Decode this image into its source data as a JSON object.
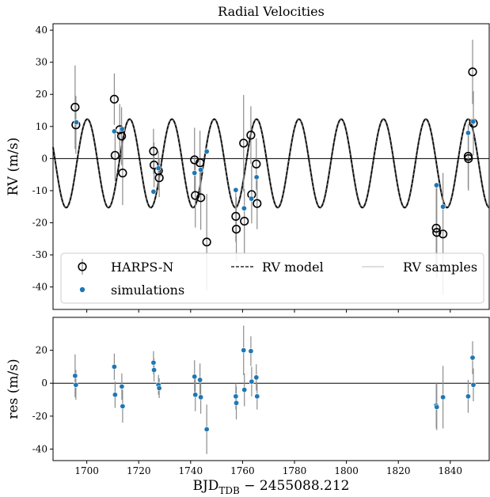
{
  "chart_data": [
    {
      "type": "scatter",
      "title": "Radial Velocities",
      "xlabel": "",
      "ylabel": "RV (m/s)",
      "xlim": [
        1687,
        1855
      ],
      "ylim": [
        -47,
        42
      ],
      "yticks": [
        -40,
        -30,
        -20,
        -10,
        0,
        10,
        20,
        30,
        40
      ],
      "grid": false,
      "legend": {
        "placement": "bottom",
        "entries": [
          "HARPS-N",
          "RV model",
          "RV samples",
          "simulations"
        ]
      },
      "series": [
        {
          "name": "HARPS-N",
          "marker": "open-circle",
          "color": "#000000",
          "points": [
            {
              "x": 1695.5,
              "y": 16.0,
              "err": 13
            },
            {
              "x": 1695.8,
              "y": 10.5,
              "err": 9
            },
            {
              "x": 1710.6,
              "y": 18.5,
              "err": 8
            },
            {
              "x": 1710.9,
              "y": 1.0,
              "err": 8
            },
            {
              "x": 1712.7,
              "y": 9.0,
              "err": 8
            },
            {
              "x": 1713.4,
              "y": 7.0,
              "err": 9
            },
            {
              "x": 1713.8,
              "y": -4.5,
              "err": 10
            },
            {
              "x": 1725.7,
              "y": 2.3,
              "err": 7
            },
            {
              "x": 1725.9,
              "y": -2.0,
              "err": 7
            },
            {
              "x": 1727.6,
              "y": -3.8,
              "err": 6
            },
            {
              "x": 1727.9,
              "y": -6.0,
              "err": 6
            },
            {
              "x": 1741.5,
              "y": -0.4,
              "err": 10
            },
            {
              "x": 1741.8,
              "y": -11.5,
              "err": 10
            },
            {
              "x": 1743.6,
              "y": -1.3,
              "err": 10
            },
            {
              "x": 1743.9,
              "y": -12.2,
              "err": 10
            },
            {
              "x": 1746.2,
              "y": -26.0,
              "err": 15
            },
            {
              "x": 1757.4,
              "y": -18.0,
              "err": 8
            },
            {
              "x": 1757.6,
              "y": -22.0,
              "err": 10
            },
            {
              "x": 1760.4,
              "y": 4.8,
              "err": 15
            },
            {
              "x": 1760.7,
              "y": -19.5,
              "err": 10
            },
            {
              "x": 1763.2,
              "y": 7.3,
              "err": 9
            },
            {
              "x": 1763.5,
              "y": -11.2,
              "err": 9
            },
            {
              "x": 1765.3,
              "y": -1.7,
              "err": 8
            },
            {
              "x": 1765.6,
              "y": -14.0,
              "err": 8
            },
            {
              "x": 1834.6,
              "y": -21.7,
              "err": 14
            },
            {
              "x": 1834.8,
              "y": -23.0,
              "err": 14
            },
            {
              "x": 1837.2,
              "y": -23.5,
              "err": 19
            },
            {
              "x": 1846.9,
              "y": 0.7,
              "err": 10
            },
            {
              "x": 1847.0,
              "y": 0.0,
              "err": 10
            },
            {
              "x": 1848.6,
              "y": 27.0,
              "err": 10
            },
            {
              "x": 1848.9,
              "y": 11.0,
              "err": 10
            }
          ]
        },
        {
          "name": "simulations",
          "marker": "filled-dot",
          "color": "#1f77b4",
          "points": [
            {
              "x": 1696.0,
              "y": 11.3
            },
            {
              "x": 1710.6,
              "y": 8.5
            },
            {
              "x": 1713.6,
              "y": 9.2
            },
            {
              "x": 1725.7,
              "y": -10.3
            },
            {
              "x": 1727.6,
              "y": -3.0
            },
            {
              "x": 1741.5,
              "y": -4.5
            },
            {
              "x": 1743.9,
              "y": -3.5
            },
            {
              "x": 1746.2,
              "y": 2.2
            },
            {
              "x": 1757.4,
              "y": -9.8
            },
            {
              "x": 1760.6,
              "y": -15.5
            },
            {
              "x": 1763.4,
              "y": -12.5
            },
            {
              "x": 1765.4,
              "y": -5.8
            },
            {
              "x": 1834.7,
              "y": -8.3
            },
            {
              "x": 1837.2,
              "y": -15.0
            },
            {
              "x": 1846.9,
              "y": 8.0
            },
            {
              "x": 1848.8,
              "y": 11.5
            }
          ]
        },
        {
          "name": "RV model",
          "type": "line",
          "style": "dashed",
          "color": "#000000",
          "model": {
            "amplitude": 13.8,
            "period": 16.3,
            "phase_date": 1700.2,
            "offset": -1.5
          }
        },
        {
          "name": "RV samples",
          "type": "line",
          "color": "#bbbbbb"
        }
      ]
    },
    {
      "type": "scatter",
      "title": "",
      "xlabel": "BJD_TDB − 2455088.212",
      "xlabel_main": "BJD",
      "xlabel_sub": "TDB",
      "xlabel_suffix": " − 2455088.212",
      "ylabel": "res (m/s)",
      "xlim": [
        1687,
        1855
      ],
      "ylim": [
        -47,
        40
      ],
      "xticks": [
        1700,
        1720,
        1740,
        1760,
        1780,
        1800,
        1820,
        1840
      ],
      "yticks": [
        -40,
        -20,
        0,
        20
      ],
      "grid": false,
      "series": [
        {
          "name": "residuals",
          "marker": "filled-dot",
          "color": "#1f77b4",
          "points": [
            {
              "x": 1695.5,
              "y": 4.5,
              "err": 13
            },
            {
              "x": 1695.8,
              "y": -1.0,
              "err": 9
            },
            {
              "x": 1710.6,
              "y": 10.0,
              "err": 8
            },
            {
              "x": 1710.9,
              "y": -7.0,
              "err": 8
            },
            {
              "x": 1713.5,
              "y": -2.0,
              "err": 8
            },
            {
              "x": 1713.8,
              "y": -14.0,
              "err": 10
            },
            {
              "x": 1725.7,
              "y": 12.5,
              "err": 7
            },
            {
              "x": 1725.9,
              "y": 8.0,
              "err": 7
            },
            {
              "x": 1727.6,
              "y": -1.0,
              "err": 6
            },
            {
              "x": 1727.9,
              "y": -3.0,
              "err": 6
            },
            {
              "x": 1741.5,
              "y": 4.0,
              "err": 10
            },
            {
              "x": 1741.8,
              "y": -7.0,
              "err": 10
            },
            {
              "x": 1743.6,
              "y": 2.0,
              "err": 10
            },
            {
              "x": 1743.9,
              "y": -8.5,
              "err": 10
            },
            {
              "x": 1746.2,
              "y": -28.0,
              "err": 15
            },
            {
              "x": 1757.4,
              "y": -8.0,
              "err": 8
            },
            {
              "x": 1757.6,
              "y": -12.0,
              "err": 10
            },
            {
              "x": 1760.4,
              "y": 20.0,
              "err": 15
            },
            {
              "x": 1760.7,
              "y": -4.0,
              "err": 10
            },
            {
              "x": 1763.2,
              "y": 19.5,
              "err": 9
            },
            {
              "x": 1763.5,
              "y": 1.0,
              "err": 9
            },
            {
              "x": 1765.3,
              "y": 3.5,
              "err": 8
            },
            {
              "x": 1765.6,
              "y": -8.0,
              "err": 8
            },
            {
              "x": 1834.6,
              "y": -13.5,
              "err": 14
            },
            {
              "x": 1834.8,
              "y": -14.5,
              "err": 14
            },
            {
              "x": 1837.2,
              "y": -8.5,
              "err": 19
            },
            {
              "x": 1846.9,
              "y": -8.0,
              "err": 10
            },
            {
              "x": 1848.6,
              "y": 15.5,
              "err": 10
            },
            {
              "x": 1848.9,
              "y": -1.0,
              "err": 10
            }
          ]
        }
      ]
    }
  ]
}
